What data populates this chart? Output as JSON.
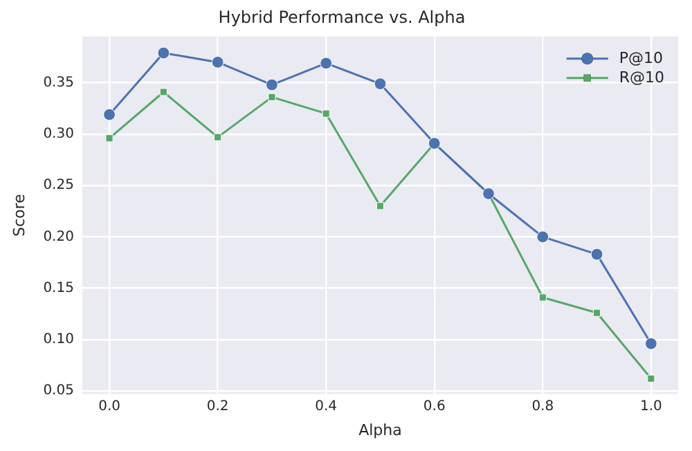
{
  "chart_data": {
    "type": "line",
    "title": "Hybrid Performance vs. Alpha",
    "xlabel": "Alpha",
    "ylabel": "Score",
    "x": [
      0.0,
      0.1,
      0.2,
      0.3,
      0.4,
      0.5,
      0.6,
      0.7,
      0.8,
      0.9,
      1.0
    ],
    "series": [
      {
        "name": "P@10",
        "color": "#4c72b0",
        "marker": "circle",
        "values": [
          0.319,
          0.379,
          0.37,
          0.348,
          0.369,
          0.349,
          0.291,
          0.242,
          0.2,
          0.183,
          0.096
        ]
      },
      {
        "name": "R@10",
        "color": "#55a868",
        "marker": "square",
        "values": [
          0.296,
          0.341,
          0.297,
          0.336,
          0.32,
          0.23,
          0.291,
          0.242,
          0.141,
          0.126,
          0.062
        ]
      }
    ],
    "xlim": [
      -0.05,
      1.05
    ],
    "xticks": [
      {
        "value": 0,
        "label": "0.0"
      },
      0.2,
      0.4,
      0.6,
      0.8,
      {
        "value": 1,
        "label": "1.0"
      }
    ],
    "ylim": [
      0.047,
      0.395
    ],
    "yticks": [
      0.05,
      {
        "value": 0.1,
        "label": "0.10"
      },
      0.15,
      {
        "value": 0.2,
        "label": "0.20"
      },
      0.25,
      {
        "value": 0.3,
        "label": "0.30"
      },
      0.35
    ],
    "grid": true,
    "legend": "top right",
    "line_style": "solid"
  }
}
